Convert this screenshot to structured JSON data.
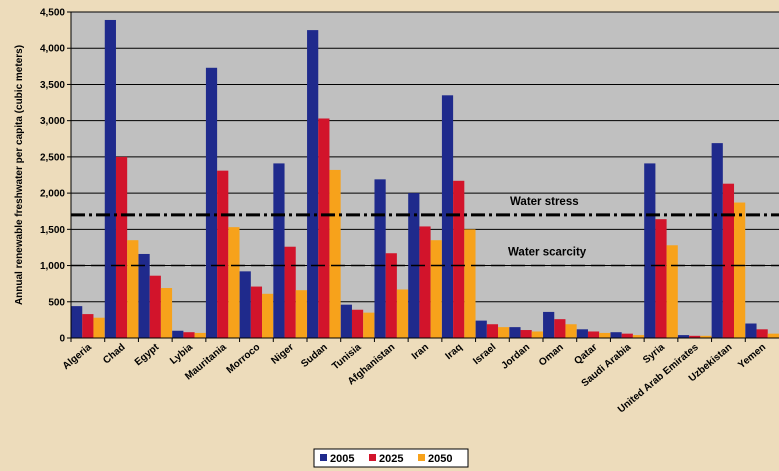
{
  "chart_data": {
    "type": "bar",
    "title": "",
    "xlabel": "",
    "ylabel": "Annual renewable freshwater per capita (cubic meters)",
    "ylim": [
      0,
      4500
    ],
    "yticks": [
      0,
      500,
      1000,
      1500,
      2000,
      2500,
      3000,
      3500,
      4000,
      4500
    ],
    "ytick_labels": [
      "0",
      "500",
      "1,000",
      "1,500",
      "2,000",
      "2,500",
      "3,000",
      "3,500",
      "4,000",
      "4,500"
    ],
    "grid": true,
    "legend_position": "bottom-center",
    "categories": [
      "Algeria",
      "Chad",
      "Egypt",
      "Lybia",
      "Mauritania",
      "Morroco",
      "Niger",
      "Sudan",
      "Tunisia",
      "Afghanistan",
      "Iran",
      "Iraq",
      "Israel",
      "Jordan",
      "Oman",
      "Qatar",
      "Saudi Arabia",
      "Syria",
      "United Arab Emirates",
      "Uzbekistan",
      "Yemen"
    ],
    "series": [
      {
        "name": "2005",
        "color": "#1f2a8c",
        "values": [
          440,
          4390,
          1160,
          100,
          3730,
          920,
          2410,
          4250,
          460,
          2190,
          2000,
          3350,
          240,
          150,
          360,
          120,
          80,
          2410,
          40,
          2690,
          200
        ]
      },
      {
        "name": "2025",
        "color": "#d2142b",
        "values": [
          330,
          2500,
          860,
          80,
          2310,
          710,
          1260,
          3030,
          390,
          1170,
          1540,
          2170,
          190,
          110,
          260,
          90,
          60,
          1640,
          30,
          2130,
          120
        ]
      },
      {
        "name": "2050",
        "color": "#f7a21b",
        "values": [
          280,
          1350,
          690,
          70,
          1530,
          610,
          660,
          2320,
          350,
          670,
          1350,
          1500,
          150,
          90,
          190,
          70,
          40,
          1280,
          30,
          1870,
          60
        ]
      }
    ],
    "reference_lines": [
      {
        "label": "Water stress",
        "value": 1700,
        "style": "dash-dot"
      },
      {
        "label": "Water scarcity",
        "value": 1000,
        "style": "dashed"
      }
    ]
  },
  "colors": {
    "page_background": "#eddcbb",
    "plot_background": "#c0c0c0",
    "legend_background": "#ffffff"
  }
}
